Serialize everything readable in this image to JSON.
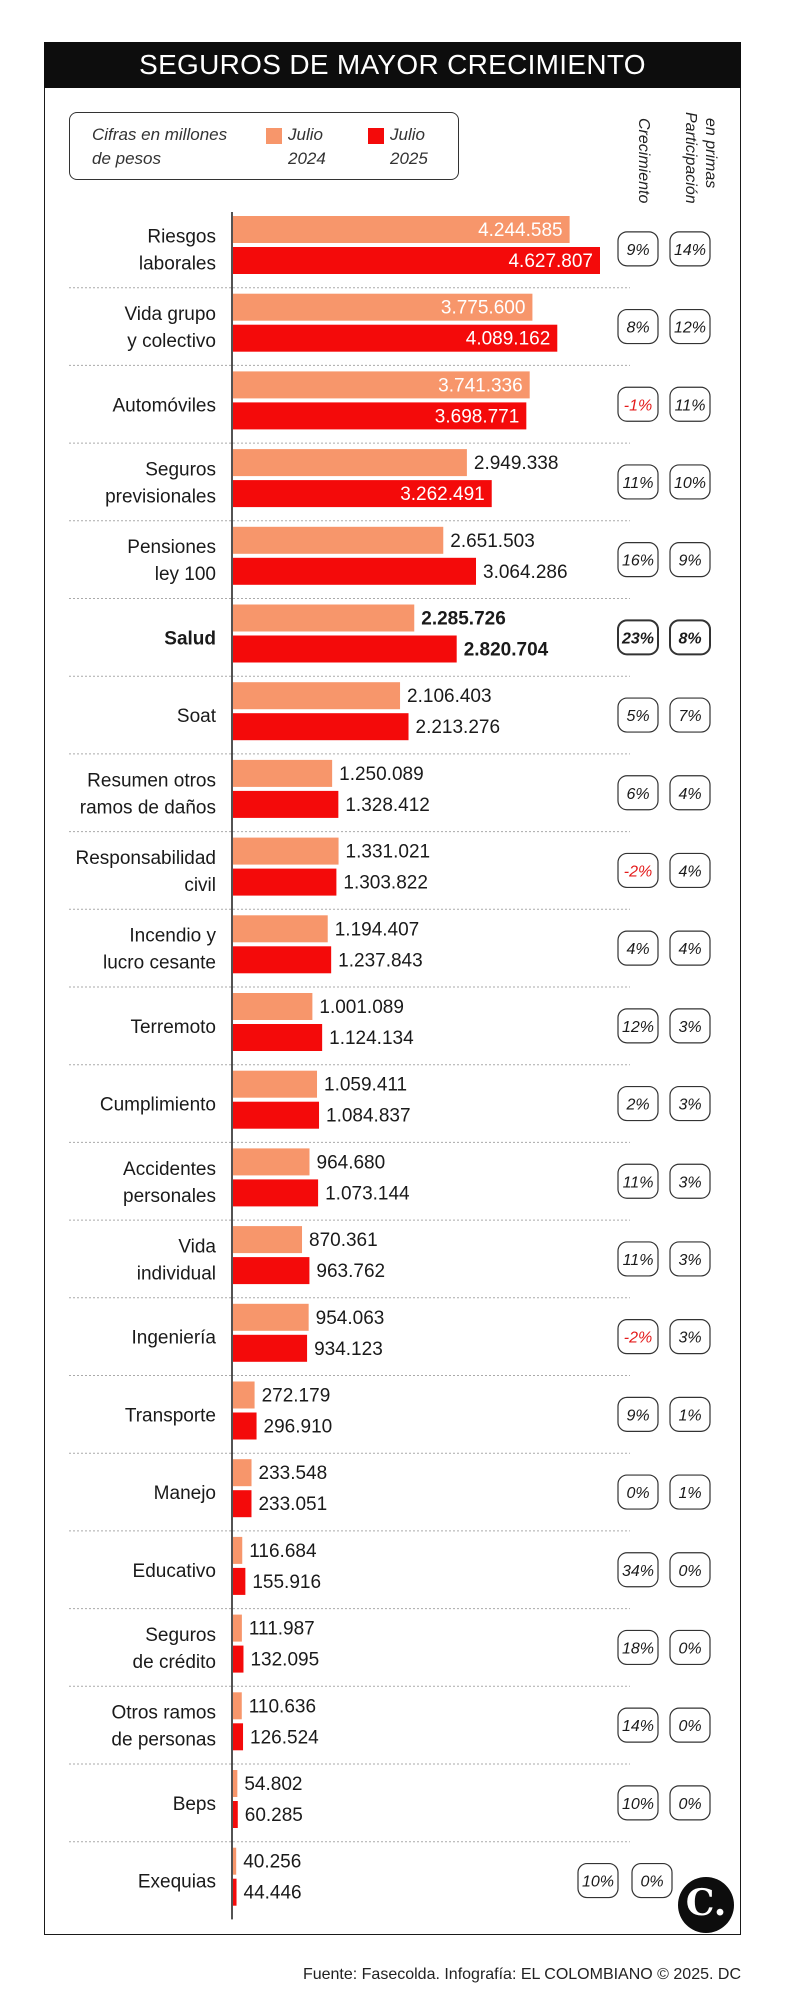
{
  "title": "SEGUROS DE MAYOR CRECIMIENTO",
  "legend": {
    "note": "Cifras en millones de pesos",
    "series_2024": "Julio 2024",
    "series_2025": "Julio 2025"
  },
  "columns": {
    "growth": "Crecimiento",
    "share_line1": "Participación",
    "share_line2": "en primas"
  },
  "colors": {
    "bar_2024": "#f7966b",
    "bar_2025": "#f40a0a",
    "negative": "#e41b1b",
    "text": "#1a1a1a"
  },
  "footer": "Fuente: Fasecolda. Infografía: EL COLOMBIANO © 2025. DC",
  "logo_icon": "el-colombiano-logo-icon",
  "chart_data": {
    "type": "bar",
    "orientation": "horizontal",
    "title": "SEGUROS DE MAYOR CRECIMIENTO",
    "unit": "millones de pesos",
    "series": [
      {
        "name": "Julio 2024",
        "values": [
          4244585,
          3775600,
          3741336,
          2949338,
          2651503,
          2285726,
          2106403,
          1250089,
          1331021,
          1194407,
          1001089,
          1059411,
          964680,
          870361,
          954063,
          272179,
          233548,
          116684,
          111987,
          110636,
          54802,
          40256
        ]
      },
      {
        "name": "Julio 2025",
        "values": [
          4627807,
          4089162,
          3698771,
          3262491,
          3064286,
          2820704,
          2213276,
          1328412,
          1303822,
          1237843,
          1124134,
          1084837,
          1073144,
          963762,
          934123,
          296910,
          233051,
          155916,
          132095,
          126524,
          60285,
          44446
        ]
      }
    ],
    "rows": [
      {
        "label_lines": [
          "Riesgos",
          "laborales"
        ],
        "v2024": "4.244.585",
        "v2025": "4.627.807",
        "growth": "9%",
        "share": "14%"
      },
      {
        "label_lines": [
          "Vida grupo",
          "y colectivo"
        ],
        "v2024": "3.775.600",
        "v2025": "4.089.162",
        "growth": "8%",
        "share": "12%"
      },
      {
        "label_lines": [
          "Automóviles"
        ],
        "v2024": "3.741.336",
        "v2025": "3.698.771",
        "growth": "-1%",
        "share": "11%"
      },
      {
        "label_lines": [
          "Seguros",
          "previsionales"
        ],
        "v2024": "2.949.338",
        "v2025": "3.262.491",
        "growth": "11%",
        "share": "10%"
      },
      {
        "label_lines": [
          "Pensiones",
          "ley 100"
        ],
        "v2024": "2.651.503",
        "v2025": "3.064.286",
        "growth": "16%",
        "share": "9%"
      },
      {
        "label_lines": [
          "Salud"
        ],
        "v2024": "2.285.726",
        "v2025": "2.820.704",
        "growth": "23%",
        "share": "8%",
        "highlight": true
      },
      {
        "label_lines": [
          "Soat"
        ],
        "v2024": "2.106.403",
        "v2025": "2.213.276",
        "growth": "5%",
        "share": "7%"
      },
      {
        "label_lines": [
          "Resumen otros",
          "ramos de daños"
        ],
        "v2024": "1.250.089",
        "v2025": "1.328.412",
        "growth": "6%",
        "share": "4%"
      },
      {
        "label_lines": [
          "Responsabilidad",
          "civil"
        ],
        "v2024": "1.331.021",
        "v2025": "1.303.822",
        "growth": "-2%",
        "share": "4%"
      },
      {
        "label_lines": [
          "Incendio y",
          "lucro cesante"
        ],
        "v2024": "1.194.407",
        "v2025": "1.237.843",
        "growth": "4%",
        "share": "4%"
      },
      {
        "label_lines": [
          "Terremoto"
        ],
        "v2024": "1.001.089",
        "v2025": "1.124.134",
        "growth": "12%",
        "share": "3%"
      },
      {
        "label_lines": [
          "Cumplimiento"
        ],
        "v2024": "1.059.411",
        "v2025": "1.084.837",
        "growth": "2%",
        "share": "3%"
      },
      {
        "label_lines": [
          "Accidentes",
          "personales"
        ],
        "v2024": "964.680",
        "v2025": "1.073.144",
        "growth": "11%",
        "share": "3%"
      },
      {
        "label_lines": [
          "Vida",
          "individual"
        ],
        "v2024": "870.361",
        "v2025": "963.762",
        "growth": "11%",
        "share": "3%"
      },
      {
        "label_lines": [
          "Ingeniería"
        ],
        "v2024": "954.063",
        "v2025": "934.123",
        "growth": "-2%",
        "share": "3%"
      },
      {
        "label_lines": [
          "Transporte"
        ],
        "v2024": "272.179",
        "v2025": "296.910",
        "growth": "9%",
        "share": "1%"
      },
      {
        "label_lines": [
          "Manejo"
        ],
        "v2024": "233.548",
        "v2025": "233.051",
        "growth": "0%",
        "share": "1%"
      },
      {
        "label_lines": [
          "Educativo"
        ],
        "v2024": "116.684",
        "v2025": "155.916",
        "growth": "34%",
        "share": "0%"
      },
      {
        "label_lines": [
          "Seguros",
          "de crédito"
        ],
        "v2024": "111.987",
        "v2025": "132.095",
        "growth": "18%",
        "share": "0%"
      },
      {
        "label_lines": [
          "Otros ramos",
          "de personas"
        ],
        "v2024": "110.636",
        "v2025": "126.524",
        "growth": "14%",
        "share": "0%"
      },
      {
        "label_lines": [
          "Beps"
        ],
        "v2024": "54.802",
        "v2025": "60.285",
        "growth": "10%",
        "share": "0%"
      },
      {
        "label_lines": [
          "Exequias"
        ],
        "v2024": "40.256",
        "v2025": "44.446",
        "growth": "10%",
        "share": "0%"
      }
    ]
  }
}
